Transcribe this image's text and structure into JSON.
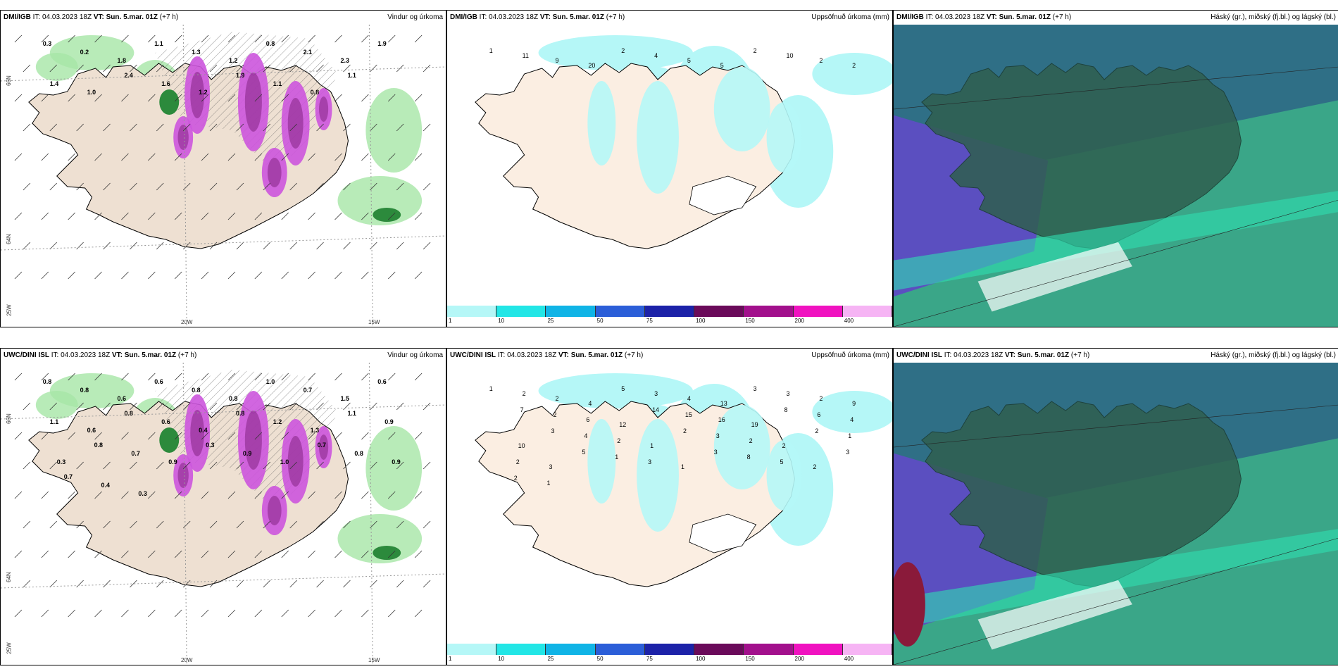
{
  "panels": [
    {
      "model": "DMI/IGB",
      "it": "IT: 04.03.2023 18Z",
      "vt": "VT: Sun. 5.mar. 01Z",
      "lead": "(+7 h)",
      "title": "Vindur og úrkoma"
    },
    {
      "model": "DMI/IGB",
      "it": "IT: 04.03.2023 18Z",
      "vt": "VT: Sun. 5.mar. 01Z",
      "lead": "(+7 h)",
      "title": "Uppsöfnuð úrkoma (mm)"
    },
    {
      "model": "DMI/IGB",
      "it": "IT: 04.03.2023 18Z",
      "vt": "VT: Sun. 5.mar. 01Z",
      "lead": "(+7 h)",
      "title": "Háský (gr.), miðský (fj.bl.) og lágský (bl.)"
    },
    {
      "model": "UWC/DINI ISL",
      "it": "IT: 04.03.2023 18Z",
      "vt": "VT: Sun. 5.mar. 01Z",
      "lead": "(+7 h)",
      "title": "Vindur og úrkoma"
    },
    {
      "model": "UWC/DINI ISL",
      "it": "IT: 04.03.2023 18Z",
      "vt": "VT: Sun. 5.mar. 01Z",
      "lead": "(+7 h)",
      "title": "Uppsöfnuð úrkoma (mm)"
    },
    {
      "model": "UWC/DINI ISL",
      "it": "IT: 04.03.2023 18Z",
      "vt": "VT: Sun. 5.mar. 01Z",
      "lead": "(+7 h)",
      "title": "Háský (gr.), miðský (fj.bl.) og lágský (bl.)"
    }
  ],
  "axis_labels": {
    "lat66": "66N",
    "lat64": "64N",
    "lon25": "25W",
    "lon20": "20W",
    "lon15": "15W"
  },
  "colorbar": {
    "ticks": [
      "1",
      "10",
      "25",
      "50",
      "75",
      "100",
      "150",
      "200",
      "400"
    ],
    "colors": [
      "#b5f7f7",
      "#22e6e6",
      "#10b4e6",
      "#2b5ed8",
      "#1c22a8",
      "#6a0a5a",
      "#a2108c",
      "#f012c0",
      "#f6b4f4"
    ]
  },
  "wind_precip_top_values": [
    "0.3",
    "0.2",
    "1.8",
    "1.1",
    "1.3",
    "1.2",
    "0.8",
    "2.1",
    "2.3",
    "1.9",
    "1.4",
    "1.0",
    "2.4",
    "1.6",
    "1.2",
    "1.9",
    "1.1",
    "0.8",
    "1.1"
  ],
  "wind_precip_bottom_values": [
    "0.8",
    "0.8",
    "0.6",
    "0.6",
    "0.8",
    "0.8",
    "1.0",
    "0.7",
    "1.5",
    "0.6",
    "1.1",
    "0.6",
    "0.8",
    "0.6",
    "0.4",
    "0.8",
    "1.2",
    "1.3",
    "1.1",
    "0.9",
    "0.3",
    "0.8",
    "0.7",
    "0.9",
    "0.3",
    "0.9",
    "1.0",
    "0.7",
    "0.8",
    "0.9",
    "0.7",
    "0.4",
    "0.3"
  ],
  "accum_top_values": [
    "1",
    "11",
    "9",
    "20",
    "2",
    "4",
    "5",
    "5",
    "2",
    "10",
    "2",
    "2"
  ],
  "accum_bottom_values": [
    "1",
    "2",
    "2",
    "4",
    "5",
    "3",
    "4",
    "13",
    "3",
    "3",
    "2",
    "9",
    "7",
    "2",
    "6",
    "12",
    "14",
    "15",
    "16",
    "19",
    "8",
    "6",
    "4",
    "10",
    "3",
    "4",
    "2",
    "1",
    "2",
    "3",
    "2",
    "2",
    "2",
    "1",
    "2",
    "3",
    "5",
    "1",
    "3",
    "1",
    "3",
    "8",
    "5",
    "2",
    "3",
    "2",
    "1"
  ]
}
